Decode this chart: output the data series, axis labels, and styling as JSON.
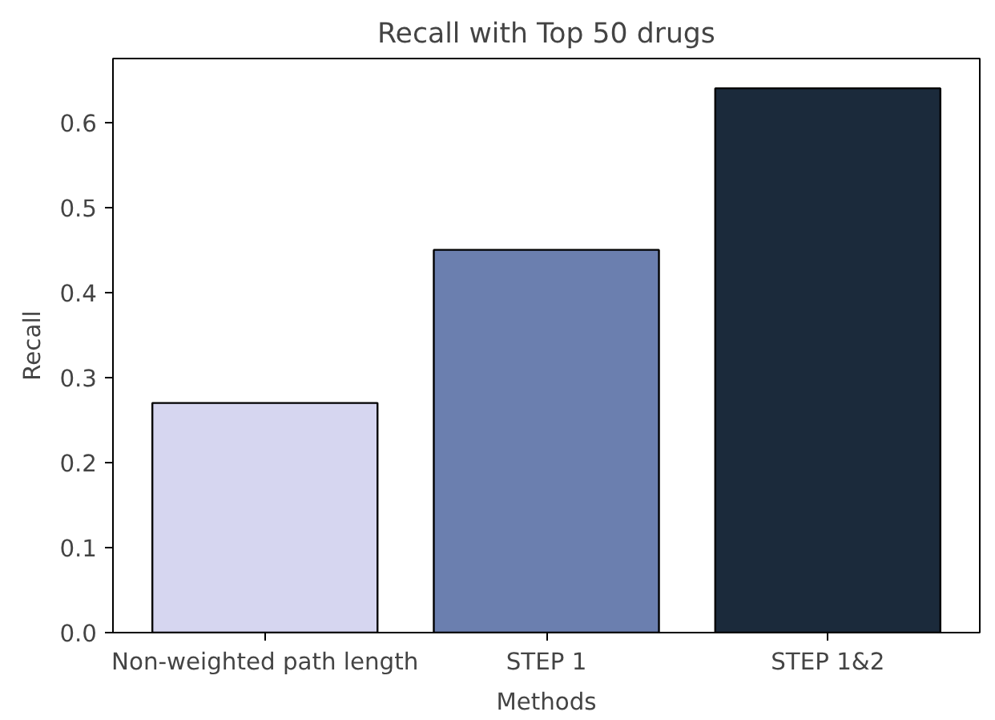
{
  "chart_data": {
    "type": "bar",
    "title": "Recall with Top 50 drugs",
    "xlabel": "Methods",
    "ylabel": "Recall",
    "categories": [
      "Non-weighted path length",
      "STEP 1",
      "STEP 1&2"
    ],
    "values": [
      0.27,
      0.45,
      0.64
    ],
    "colors": [
      "#d6d6f0",
      "#6b7faf",
      "#1b2a3b"
    ],
    "ylim": [
      0,
      0.675
    ],
    "yticks": [
      {
        "value": 0,
        "label": "0.0"
      },
      0.1,
      0.2,
      0.3,
      0.4,
      0.5,
      0.6
    ],
    "grid": false
  }
}
